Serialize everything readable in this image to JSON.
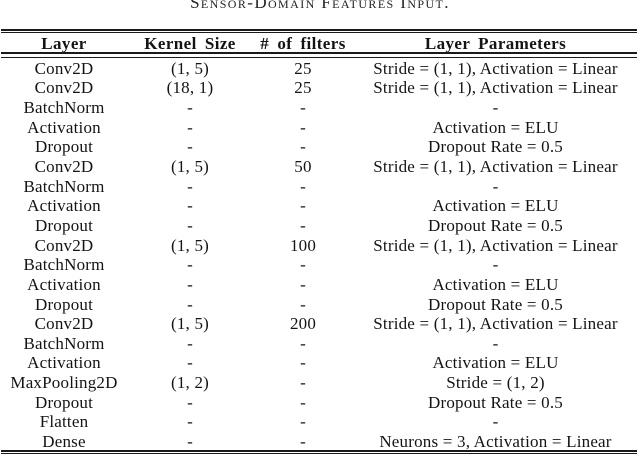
{
  "caption": "Sensor-Domain Features Input.",
  "table": {
    "headers": [
      "Layer",
      "Kernel Size",
      "# of filters",
      "Layer Parameters"
    ],
    "rows": [
      [
        "Conv2D",
        "(1, 5)",
        "25",
        "Stride = (1, 1), Activation = Linear"
      ],
      [
        "Conv2D",
        "(18, 1)",
        "25",
        "Stride = (1, 1), Activation = Linear"
      ],
      [
        "BatchNorm",
        "-",
        "-",
        "-"
      ],
      [
        "Activation",
        "-",
        "-",
        "Activation = ELU"
      ],
      [
        "Dropout",
        "-",
        "-",
        "Dropout Rate = 0.5"
      ],
      [
        "Conv2D",
        "(1, 5)",
        "50",
        "Stride = (1, 1), Activation = Linear"
      ],
      [
        "BatchNorm",
        "-",
        "-",
        "-"
      ],
      [
        "Activation",
        "-",
        "-",
        "Activation = ELU"
      ],
      [
        "Dropout",
        "-",
        "-",
        "Dropout Rate = 0.5"
      ],
      [
        "Conv2D",
        "(1, 5)",
        "100",
        "Stride = (1, 1), Activation = Linear"
      ],
      [
        "BatchNorm",
        "-",
        "-",
        "-"
      ],
      [
        "Activation",
        "-",
        "-",
        "Activation = ELU"
      ],
      [
        "Dropout",
        "-",
        "-",
        "Dropout Rate = 0.5"
      ],
      [
        "Conv2D",
        "(1, 5)",
        "200",
        "Stride = (1, 1), Activation = Linear"
      ],
      [
        "BatchNorm",
        "-",
        "-",
        "-"
      ],
      [
        "Activation",
        "-",
        "-",
        "Activation = ELU"
      ],
      [
        "MaxPooling2D",
        "(1, 2)",
        "-",
        "Stride = (1, 2)"
      ],
      [
        "Dropout",
        "-",
        "-",
        "Dropout Rate = 0.5"
      ],
      [
        "Flatten",
        "-",
        "-",
        "-"
      ],
      [
        "Dense",
        "-",
        "-",
        "Neurons = 3, Activation = Linear"
      ]
    ],
    "column_keys": [
      "layer",
      "kernel-size",
      "num-filters",
      "layer-parameters"
    ]
  },
  "colors": {
    "text": "#141414",
    "rule": "#1a1a1a",
    "background": "#ffffff"
  }
}
